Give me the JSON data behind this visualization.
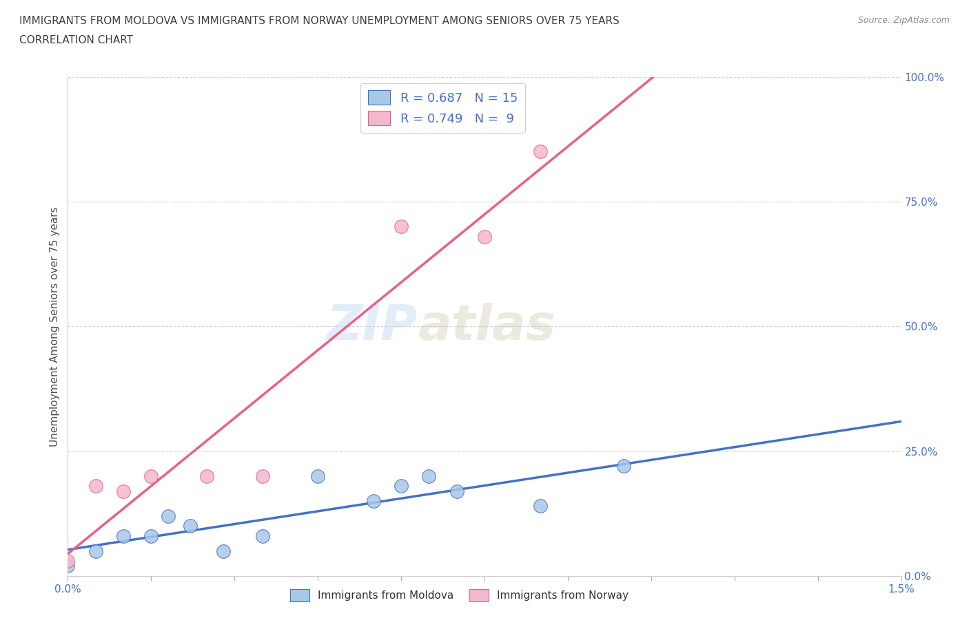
{
  "title_line1": "IMMIGRANTS FROM MOLDOVA VS IMMIGRANTS FROM NORWAY UNEMPLOYMENT AMONG SENIORS OVER 75 YEARS",
  "title_line2": "CORRELATION CHART",
  "source": "Source: ZipAtlas.com",
  "ylabel": "Unemployment Among Seniors over 75 years",
  "xlim": [
    0.0,
    1.5
  ],
  "ylim": [
    0.0,
    100.0
  ],
  "ytick_values": [
    0,
    25,
    50,
    75,
    100
  ],
  "xtick_values": [
    0.0,
    0.15,
    0.3,
    0.45,
    0.6,
    0.75,
    0.9,
    1.05,
    1.2,
    1.35,
    1.5
  ],
  "moldova_color": "#a8c8e8",
  "norway_color": "#f4b8cc",
  "line_color_moldova": "#4472c4",
  "line_color_norway": "#e8608a",
  "r_moldova": 0.687,
  "n_moldova": 15,
  "r_norway": 0.749,
  "n_norway": 9,
  "legend_r_color": "#4472c4",
  "title_color": "#404040",
  "watermark_zip": "ZIP",
  "watermark_atlas": "atlas",
  "moldova_x": [
    0.0,
    0.05,
    0.1,
    0.15,
    0.18,
    0.22,
    0.28,
    0.35,
    0.45,
    0.55,
    0.6,
    0.65,
    0.7,
    0.85,
    1.0
  ],
  "moldova_y": [
    2,
    5,
    8,
    8,
    12,
    10,
    5,
    8,
    20,
    15,
    18,
    20,
    17,
    14,
    22
  ],
  "norway_x": [
    0.0,
    0.05,
    0.1,
    0.15,
    0.25,
    0.35,
    0.6,
    0.75,
    0.85
  ],
  "norway_y": [
    3,
    18,
    17,
    20,
    20,
    20,
    70,
    68,
    85
  ],
  "background_color": "#ffffff",
  "grid_color": "#d0d0d0",
  "tick_label_color": "#4472c4",
  "bottom_label_color": "#303030"
}
